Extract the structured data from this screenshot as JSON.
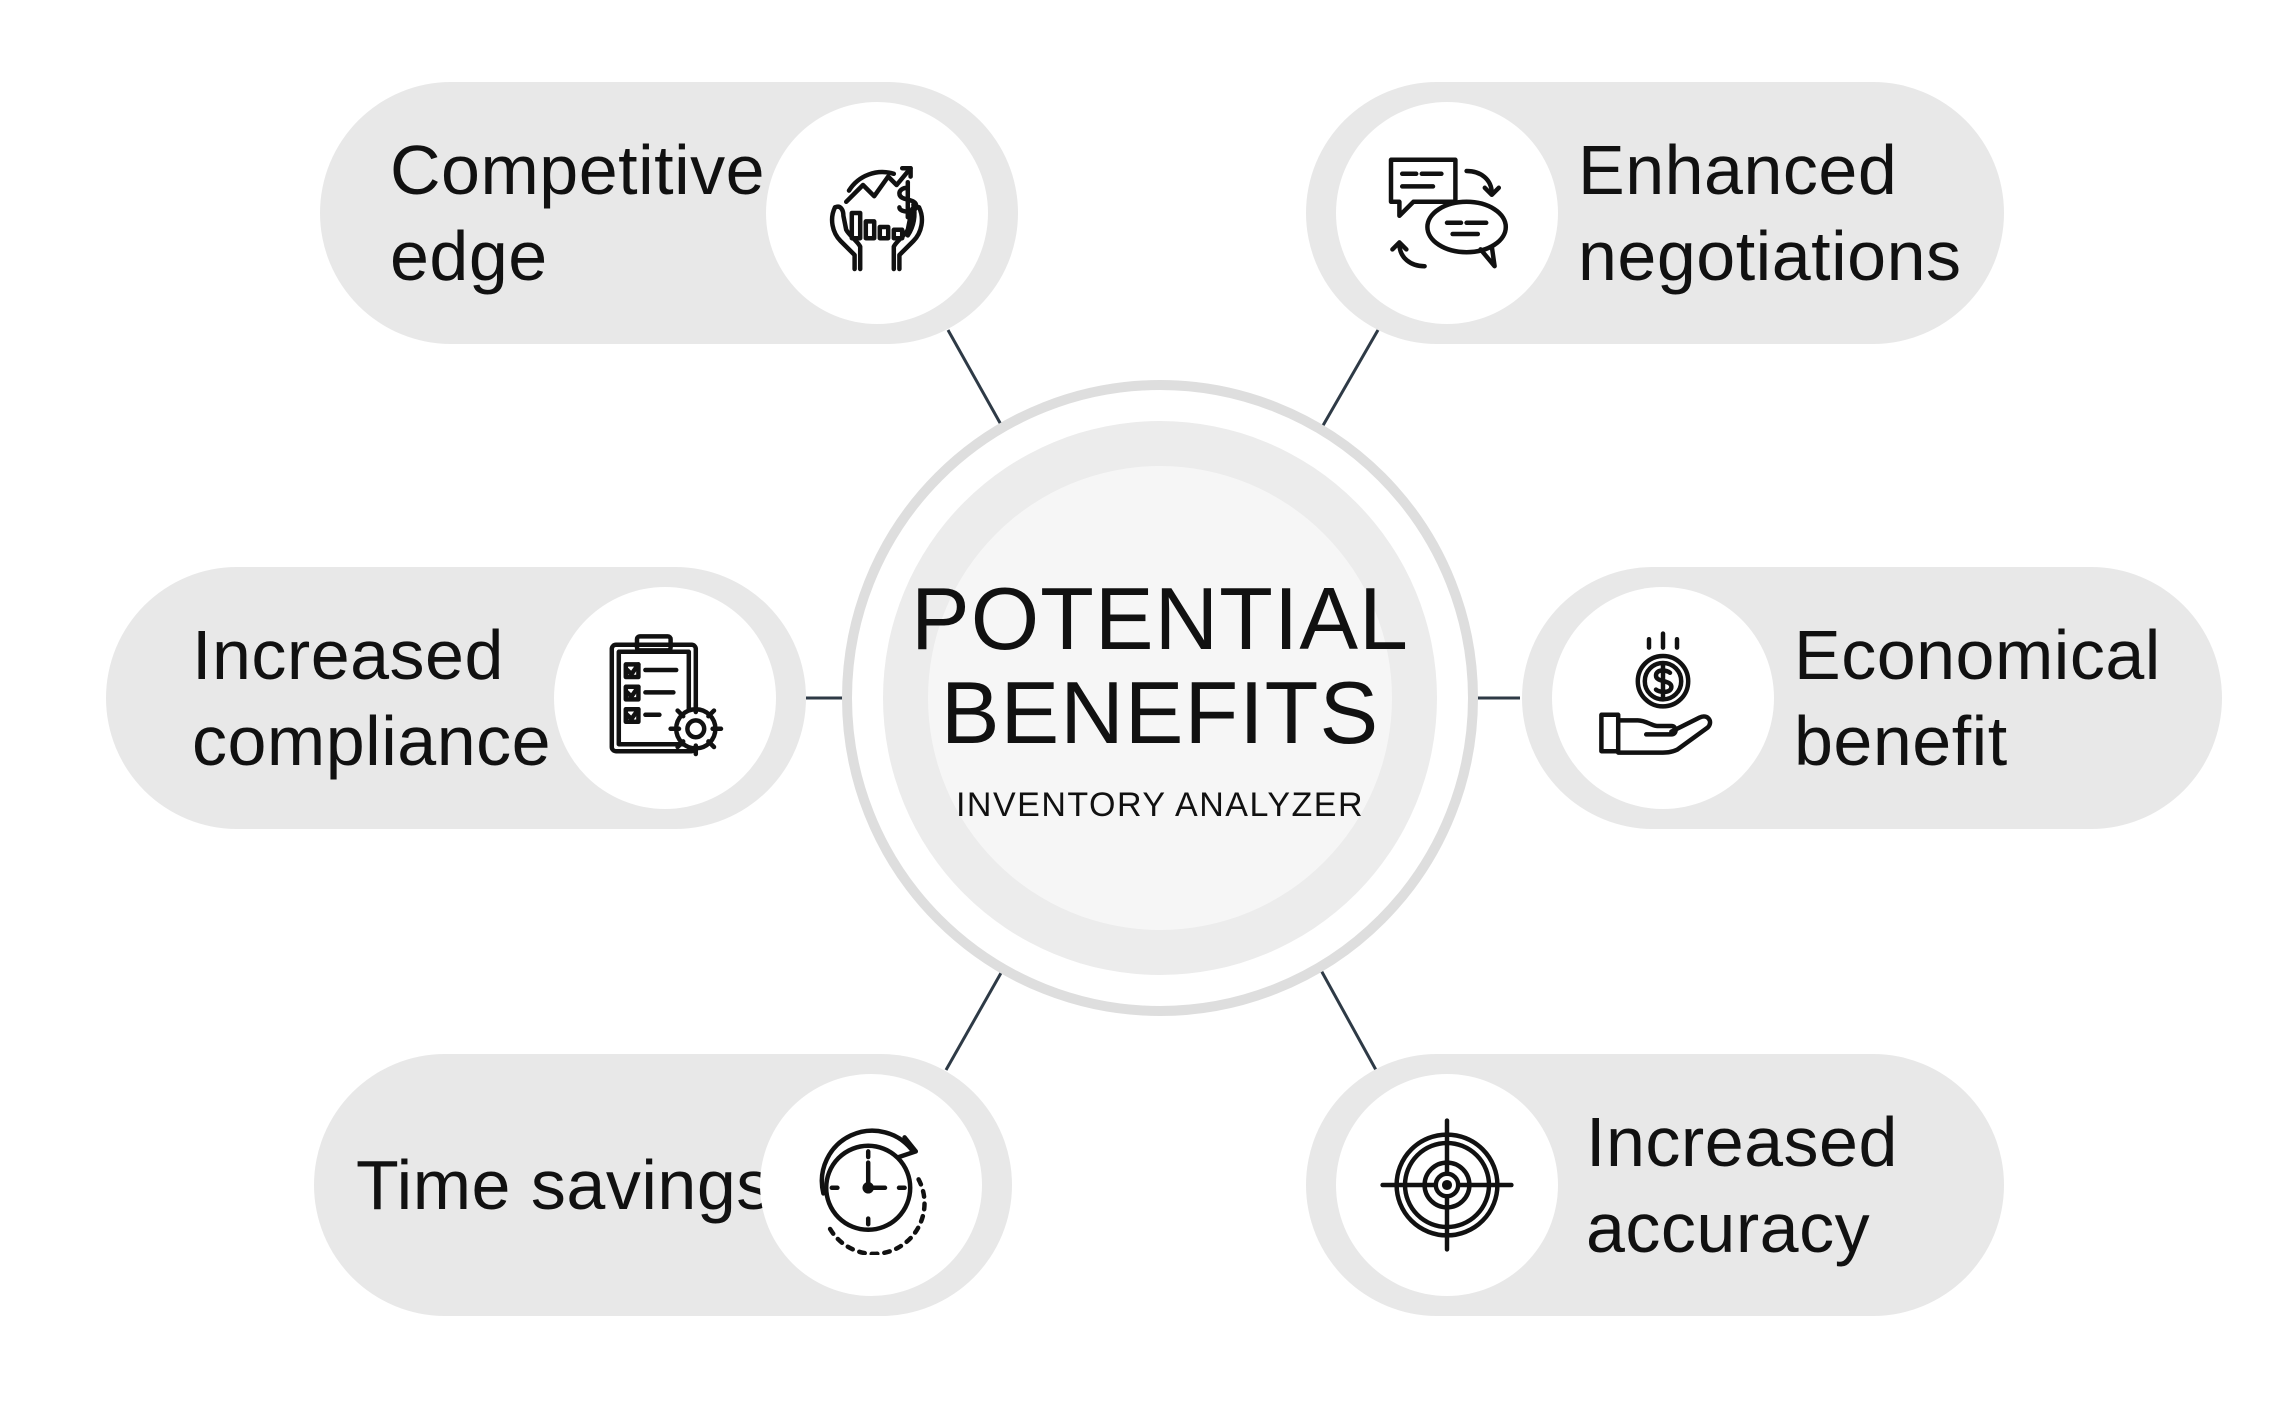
{
  "hub": {
    "title_line1": "POTENTIAL",
    "title_line2": "BENEFITS",
    "subtitle": "INVENTORY ANALYZER"
  },
  "benefits": [
    {
      "id": "competitive-edge",
      "line1": "Competitive",
      "line2": "edge",
      "icon": "hands-growth-chart-icon"
    },
    {
      "id": "enhanced-negotiations",
      "line1": "Enhanced",
      "line2": "negotiations",
      "icon": "chat-bubbles-exchange-icon"
    },
    {
      "id": "increased-compliance",
      "line1": "Increased",
      "line2": "compliance",
      "icon": "clipboard-checklist-gear-icon"
    },
    {
      "id": "economical-benefit",
      "line1": "Economical",
      "line2": "benefit",
      "icon": "hand-dollar-coin-icon"
    },
    {
      "id": "time-savings",
      "line1": "Time savings",
      "line2": "",
      "icon": "stopwatch-refresh-icon"
    },
    {
      "id": "increased-accuracy",
      "line1": "Increased",
      "line2": "accuracy",
      "icon": "target-crosshair-icon"
    }
  ],
  "colors": {
    "pill": "#e8e8e8",
    "ring": "#dedede",
    "connector": "#2e3a46",
    "text": "#111111"
  }
}
